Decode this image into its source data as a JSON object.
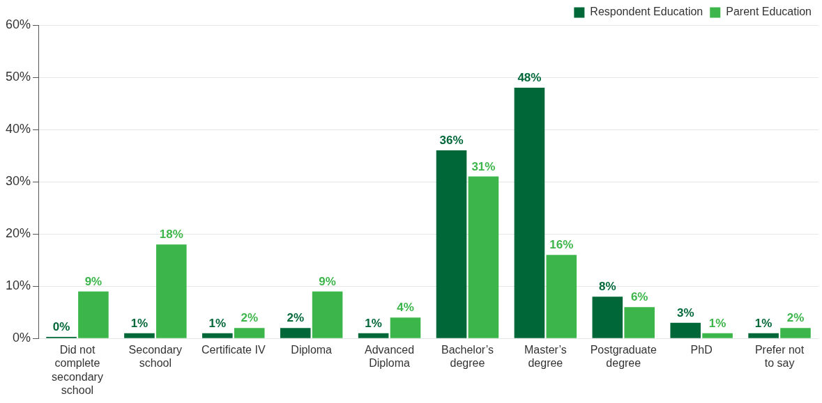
{
  "chart_data": {
    "type": "bar",
    "categories": [
      "Did not complete secondary school",
      "Secondary school",
      "Certificate IV",
      "Diploma",
      "Advanced Diploma",
      "Bachelor’s degree",
      "Master’s degree",
      "Postgraduate degree",
      "PhD",
      "Prefer not to say"
    ],
    "series": [
      {
        "name": "Respondent Education",
        "color": "#006838",
        "values": [
          0.3,
          1,
          1,
          2,
          1,
          36,
          48,
          8,
          3,
          1
        ],
        "value_labels": [
          "0%",
          "1%",
          "1%",
          "2%",
          "1%",
          "36%",
          "48%",
          "8%",
          "3%",
          "1%"
        ]
      },
      {
        "name": "Parent Education",
        "color": "#3cb64a",
        "values": [
          9,
          18,
          2,
          9,
          4,
          31,
          16,
          6,
          1,
          2
        ],
        "value_labels": [
          "9%",
          "18%",
          "2%",
          "9%",
          "4%",
          "31%",
          "16%",
          "6%",
          "1%",
          "2%"
        ]
      }
    ],
    "ylim": [
      0,
      60
    ],
    "yticks": [
      {
        "value": 0,
        "label": "0%"
      },
      {
        "value": 10,
        "label": "10%"
      },
      {
        "value": 20,
        "label": "20%"
      },
      {
        "value": 30,
        "label": "30%"
      },
      {
        "value": 40,
        "label": "40%"
      },
      {
        "value": 50,
        "label": "50%"
      },
      {
        "value": 60,
        "label": "60%"
      }
    ],
    "grid": "y",
    "legend": "top right"
  }
}
